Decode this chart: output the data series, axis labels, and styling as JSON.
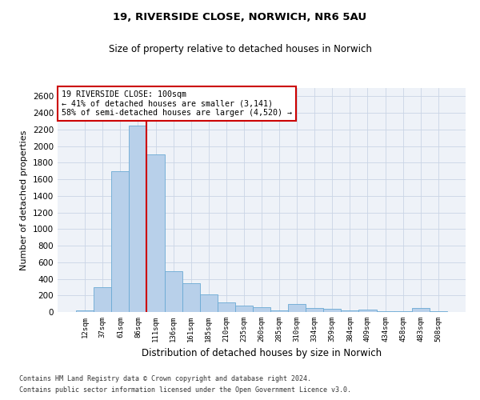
{
  "title1": "19, RIVERSIDE CLOSE, NORWICH, NR6 5AU",
  "title2": "Size of property relative to detached houses in Norwich",
  "xlabel": "Distribution of detached houses by size in Norwich",
  "ylabel": "Number of detached properties",
  "footer1": "Contains HM Land Registry data © Crown copyright and database right 2024.",
  "footer2": "Contains public sector information licensed under the Open Government Licence v3.0.",
  "annotation_line1": "19 RIVERSIDE CLOSE: 100sqm",
  "annotation_line2": "← 41% of detached houses are smaller (3,141)",
  "annotation_line3": "58% of semi-detached houses are larger (4,520) →",
  "bar_color": "#b8d0ea",
  "bar_edge_color": "#6aaad4",
  "grid_color": "#cad5e5",
  "bg_color": "#eef2f8",
  "red_line_color": "#cc0000",
  "annotation_box_color": "#cc0000",
  "categories": [
    "12sqm",
    "37sqm",
    "61sqm",
    "86sqm",
    "111sqm",
    "136sqm",
    "161sqm",
    "185sqm",
    "210sqm",
    "235sqm",
    "260sqm",
    "285sqm",
    "310sqm",
    "334sqm",
    "359sqm",
    "384sqm",
    "409sqm",
    "434sqm",
    "458sqm",
    "483sqm",
    "508sqm"
  ],
  "values": [
    20,
    300,
    1700,
    2250,
    1900,
    490,
    350,
    210,
    120,
    80,
    55,
    20,
    100,
    50,
    40,
    20,
    30,
    10,
    5,
    50,
    10
  ],
  "red_line_x": 3.5,
  "ylim": [
    0,
    2700
  ],
  "yticks": [
    0,
    200,
    400,
    600,
    800,
    1000,
    1200,
    1400,
    1600,
    1800,
    2000,
    2200,
    2400,
    2600
  ]
}
